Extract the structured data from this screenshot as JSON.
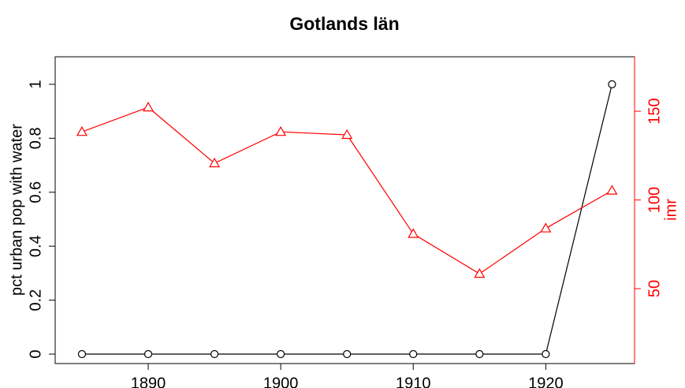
{
  "chart_data": {
    "type": "line",
    "title": "Gotlands län",
    "x": [
      1885,
      1890,
      1895,
      1900,
      1905,
      1910,
      1915,
      1920,
      1925
    ],
    "xlim": [
      1882.98,
      1926.7
    ],
    "xticks": [
      1890,
      1900,
      1910,
      1920
    ],
    "ylim": [
      -0.035,
      1.102
    ],
    "yticks": [
      0,
      0.2,
      0.4,
      0.6,
      0.8,
      1
    ],
    "y2lim": [
      7.8,
      180.7
    ],
    "y2ticks": [
      50,
      100,
      150
    ],
    "ylabel": "pct urban pop with water",
    "y2label": "imr",
    "series": [
      {
        "color": "#000000",
        "marker": "circle",
        "values": [
          0,
          0,
          0,
          0,
          0,
          0,
          0,
          0,
          1
        ]
      },
      {
        "color": "#ff0000",
        "marker": "triangle",
        "axis": "y2",
        "values": [
          138.4,
          152.2,
          120.7,
          138.4,
          136.7,
          80.9,
          58.4,
          84,
          105.3
        ]
      }
    ]
  }
}
